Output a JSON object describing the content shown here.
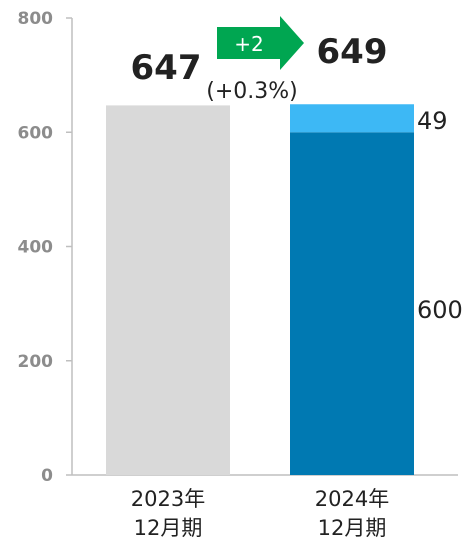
{
  "chart_data": {
    "type": "bar",
    "stacked": true,
    "title": "",
    "xlabel": "",
    "ylabel": "",
    "ylim": [
      0,
      800
    ],
    "yticks": [
      0,
      200,
      400,
      600,
      800
    ],
    "categories": [
      {
        "line1": "2023年",
        "line2": "12月期"
      },
      {
        "line1": "2024年",
        "line2": "12月期"
      }
    ],
    "series": [
      {
        "color": "#d9d9d9",
        "values": [
          647,
          0
        ]
      },
      {
        "color": "#0079b2",
        "values": [
          0,
          600
        ]
      },
      {
        "color": "#3db8f5",
        "values": [
          0,
          49
        ]
      }
    ],
    "totals": [
      "647",
      "649"
    ],
    "segment_labels": {
      "lower": "600",
      "upper": "49"
    },
    "change": {
      "label": "+2",
      "percent": "(+0.3%)",
      "color": "#00a651"
    }
  }
}
